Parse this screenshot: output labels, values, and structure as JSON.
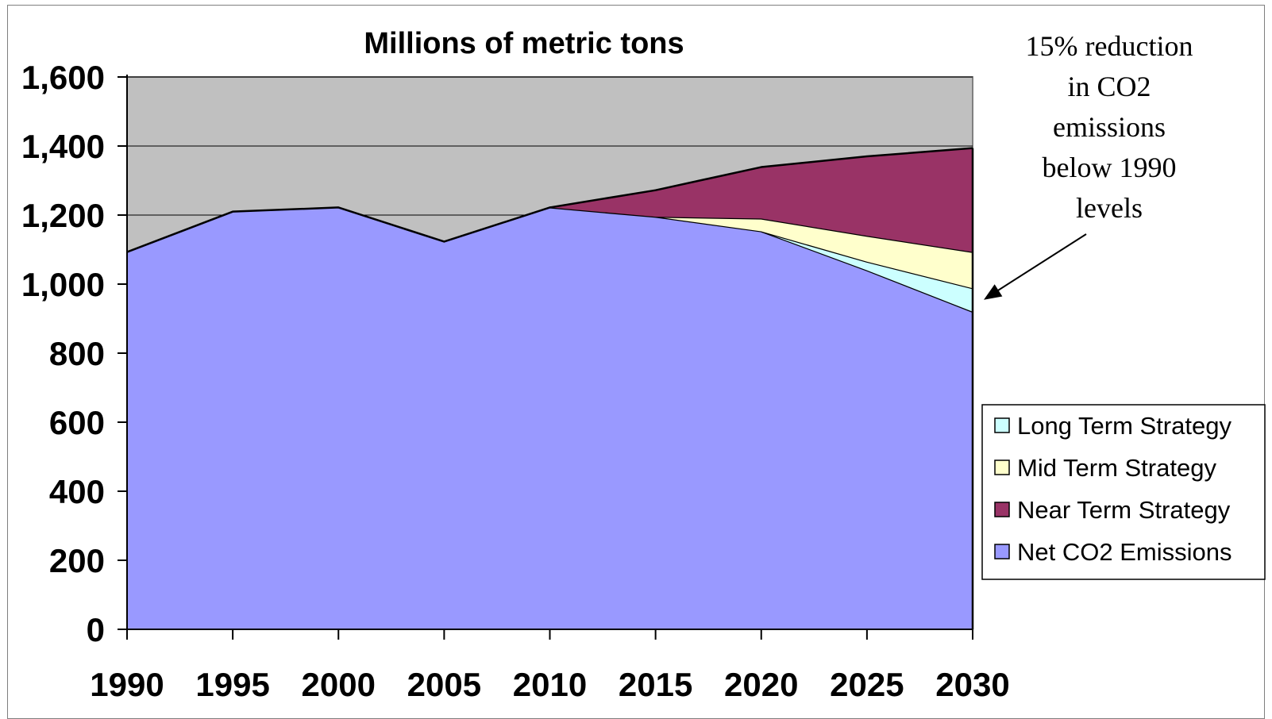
{
  "chart_data": {
    "type": "area",
    "title": "Millions of metric tons",
    "xlabel": "",
    "ylabel": "",
    "x": [
      "1990",
      "1995",
      "2000",
      "2005",
      "2010",
      "2015",
      "2020",
      "2025",
      "2030"
    ],
    "ylim": [
      0,
      1600
    ],
    "yticks": [
      0,
      200,
      400,
      600,
      800,
      1000,
      1200,
      1400,
      1600
    ],
    "ytick_labels": [
      "0",
      "200",
      "400",
      "600",
      "800",
      "1,000",
      "1,200",
      "1,400",
      "1,600"
    ],
    "grid": true,
    "plot_background": "#c0c0c0",
    "legend_position": "right",
    "stacked": true,
    "series": [
      {
        "name": "Net CO2 Emissions",
        "color": "#9999ff",
        "values": [
          1093,
          1210,
          1222,
          1123,
          1222,
          1195,
          1153,
          1040,
          920
        ]
      },
      {
        "name": "Long Term Strategy",
        "color": "#ccffff",
        "values": [
          0,
          0,
          0,
          0,
          0,
          0,
          0,
          25,
          68
        ]
      },
      {
        "name": "Mid Term Strategy",
        "color": "#ffffcc",
        "values": [
          0,
          0,
          0,
          0,
          0,
          0,
          37,
          75,
          105
        ]
      },
      {
        "name": "Near Term Strategy",
        "color": "#993366",
        "values": [
          0,
          0,
          0,
          0,
          0,
          77,
          149,
          230,
          301
        ]
      }
    ],
    "legend_order": [
      "Long Term Strategy",
      "Mid Term Strategy",
      "Near Term Strategy",
      "Net CO2 Emissions"
    ],
    "annotation": {
      "lines": [
        "15% reduction",
        "in CO2",
        "emissions",
        "below 1990",
        "levels"
      ],
      "arrow_target": {
        "x": "2030",
        "y": 950
      }
    }
  }
}
